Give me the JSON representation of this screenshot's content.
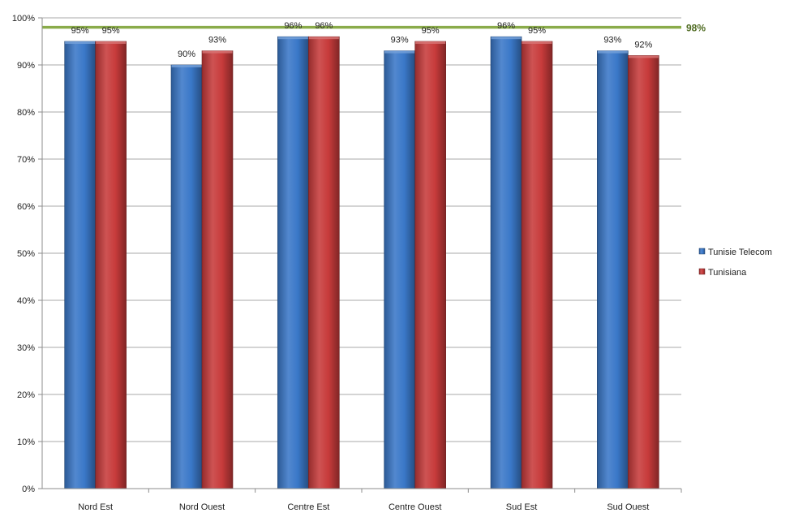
{
  "chart_data": {
    "type": "bar",
    "categories": [
      "Nord Est",
      "Nord Ouest",
      "Centre Est",
      "Centre Ouest",
      "Sud Est",
      "Sud Ouest"
    ],
    "series": [
      {
        "name": "Tunisie Telecom",
        "values": [
          95,
          90,
          96,
          93,
          96,
          93
        ],
        "labels": [
          "95%",
          "90%",
          "96%",
          "93%",
          "96%",
          "93%"
        ],
        "color": "#3a78c8"
      },
      {
        "name": "Tunisiana",
        "values": [
          95,
          93,
          96,
          95,
          95,
          92
        ],
        "labels": [
          "95%",
          "93%",
          "96%",
          "95%",
          "95%",
          "92%"
        ],
        "color": "#c73b3b"
      }
    ],
    "target": {
      "value": 98,
      "label": "98%",
      "color": "#8aab4a",
      "label_color": "#4f6b22"
    },
    "ylim": [
      0,
      100
    ],
    "yticks": [
      0,
      10,
      20,
      30,
      40,
      50,
      60,
      70,
      80,
      90,
      100
    ],
    "ytick_labels": [
      "0%",
      "10%",
      "20%",
      "30%",
      "40%",
      "50%",
      "60%",
      "70%",
      "80%",
      "90%",
      "100%"
    ],
    "grid": true,
    "legend_position": "right",
    "title": "",
    "xlabel": "",
    "ylabel": ""
  }
}
